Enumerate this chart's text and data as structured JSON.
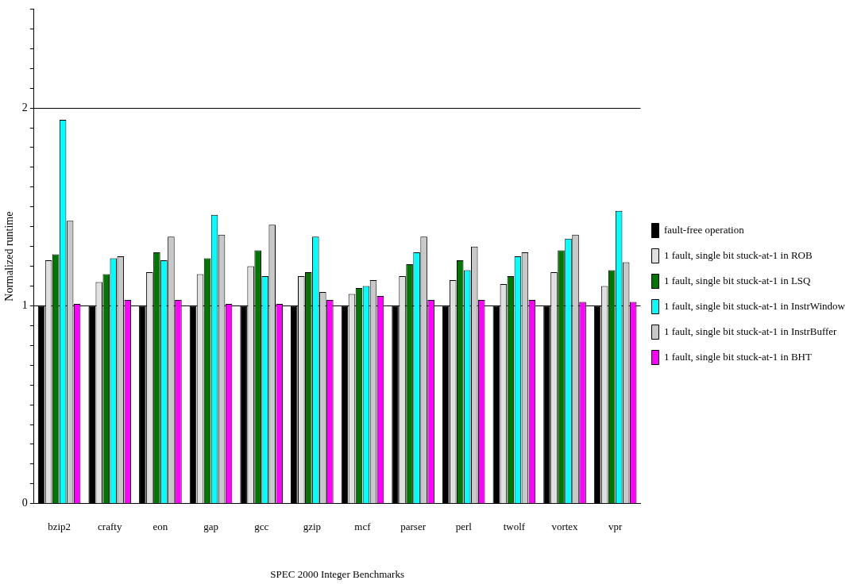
{
  "chart_data": {
    "type": "bar",
    "xlabel": "SPEC 2000 Integer Benchmarks",
    "ylabel": "Normalized runtime",
    "categories": [
      "bzip2",
      "crafty",
      "eon",
      "gap",
      "gcc",
      "gzip",
      "mcf",
      "parser",
      "perl",
      "twolf",
      "vortex",
      "vpr"
    ],
    "series": [
      {
        "name": "fault-free operation",
        "color": "#000000",
        "values": [
          1,
          1,
          1,
          1,
          1,
          1,
          1,
          1,
          1,
          1,
          1,
          1
        ]
      },
      {
        "name": "1 fault, single bit stuck-at-1 in ROB",
        "color": "#e0e0e0",
        "values": [
          1.23,
          1.12,
          1.17,
          1.16,
          1.2,
          1.15,
          1.06,
          1.15,
          1.13,
          1.11,
          1.17,
          1.1
        ]
      },
      {
        "name": "1 fault, single bit stuck-at-1 in LSQ",
        "color": "#007700",
        "values": [
          1.26,
          1.16,
          1.27,
          1.24,
          1.28,
          1.17,
          1.09,
          1.21,
          1.23,
          1.15,
          1.28,
          1.18
        ]
      },
      {
        "name": "1 fault, single bit stuck-at-1 in InstrWindow",
        "color": "#00ffff",
        "values": [
          1.94,
          1.24,
          1.23,
          1.46,
          1.15,
          1.35,
          1.1,
          1.27,
          1.18,
          1.25,
          1.34,
          1.48
        ]
      },
      {
        "name": "1 fault, single bit stuck-at-1 in InstrBuffer",
        "color": "#c8c8c8",
        "values": [
          1.43,
          1.25,
          1.35,
          1.36,
          1.41,
          1.07,
          1.13,
          1.35,
          1.3,
          1.27,
          1.36,
          1.22
        ]
      },
      {
        "name": "1 fault, single bit stuck-at-1 in BHT",
        "color": "#ff00ff",
        "values": [
          1.01,
          1.03,
          1.03,
          1.01,
          1.01,
          1.03,
          1.05,
          1.03,
          1.03,
          1.03,
          1.02,
          1.02
        ]
      }
    ],
    "ylim": [
      0,
      2.5
    ],
    "yticks": [
      0,
      {
        "value": 0.1,
        "label": null
      },
      {
        "value": 0.2,
        "label": null
      },
      {
        "value": 0.3,
        "label": null
      },
      {
        "value": 0.4,
        "label": null
      },
      {
        "value": 0.5,
        "label": null
      },
      {
        "value": 0.6,
        "label": null
      },
      {
        "value": 0.7,
        "label": null
      },
      {
        "value": 0.8,
        "label": null
      },
      {
        "value": 0.9,
        "label": null
      },
      1,
      {
        "value": 1.1,
        "label": null
      },
      {
        "value": 1.2,
        "label": null
      },
      {
        "value": 1.3,
        "label": null
      },
      {
        "value": 1.4,
        "label": null
      },
      {
        "value": 1.5,
        "label": null
      },
      {
        "value": 1.6,
        "label": null
      },
      {
        "value": 1.7,
        "label": null
      },
      {
        "value": 1.8,
        "label": null
      },
      {
        "value": 1.9,
        "label": null
      },
      2,
      {
        "value": 2.1,
        "label": null
      },
      {
        "value": 2.2,
        "label": null
      },
      {
        "value": 2.3,
        "label": null
      },
      {
        "value": 2.4,
        "label": null
      },
      {
        "value": 2.5,
        "label": null
      }
    ],
    "grid": "y",
    "legend": "right"
  }
}
